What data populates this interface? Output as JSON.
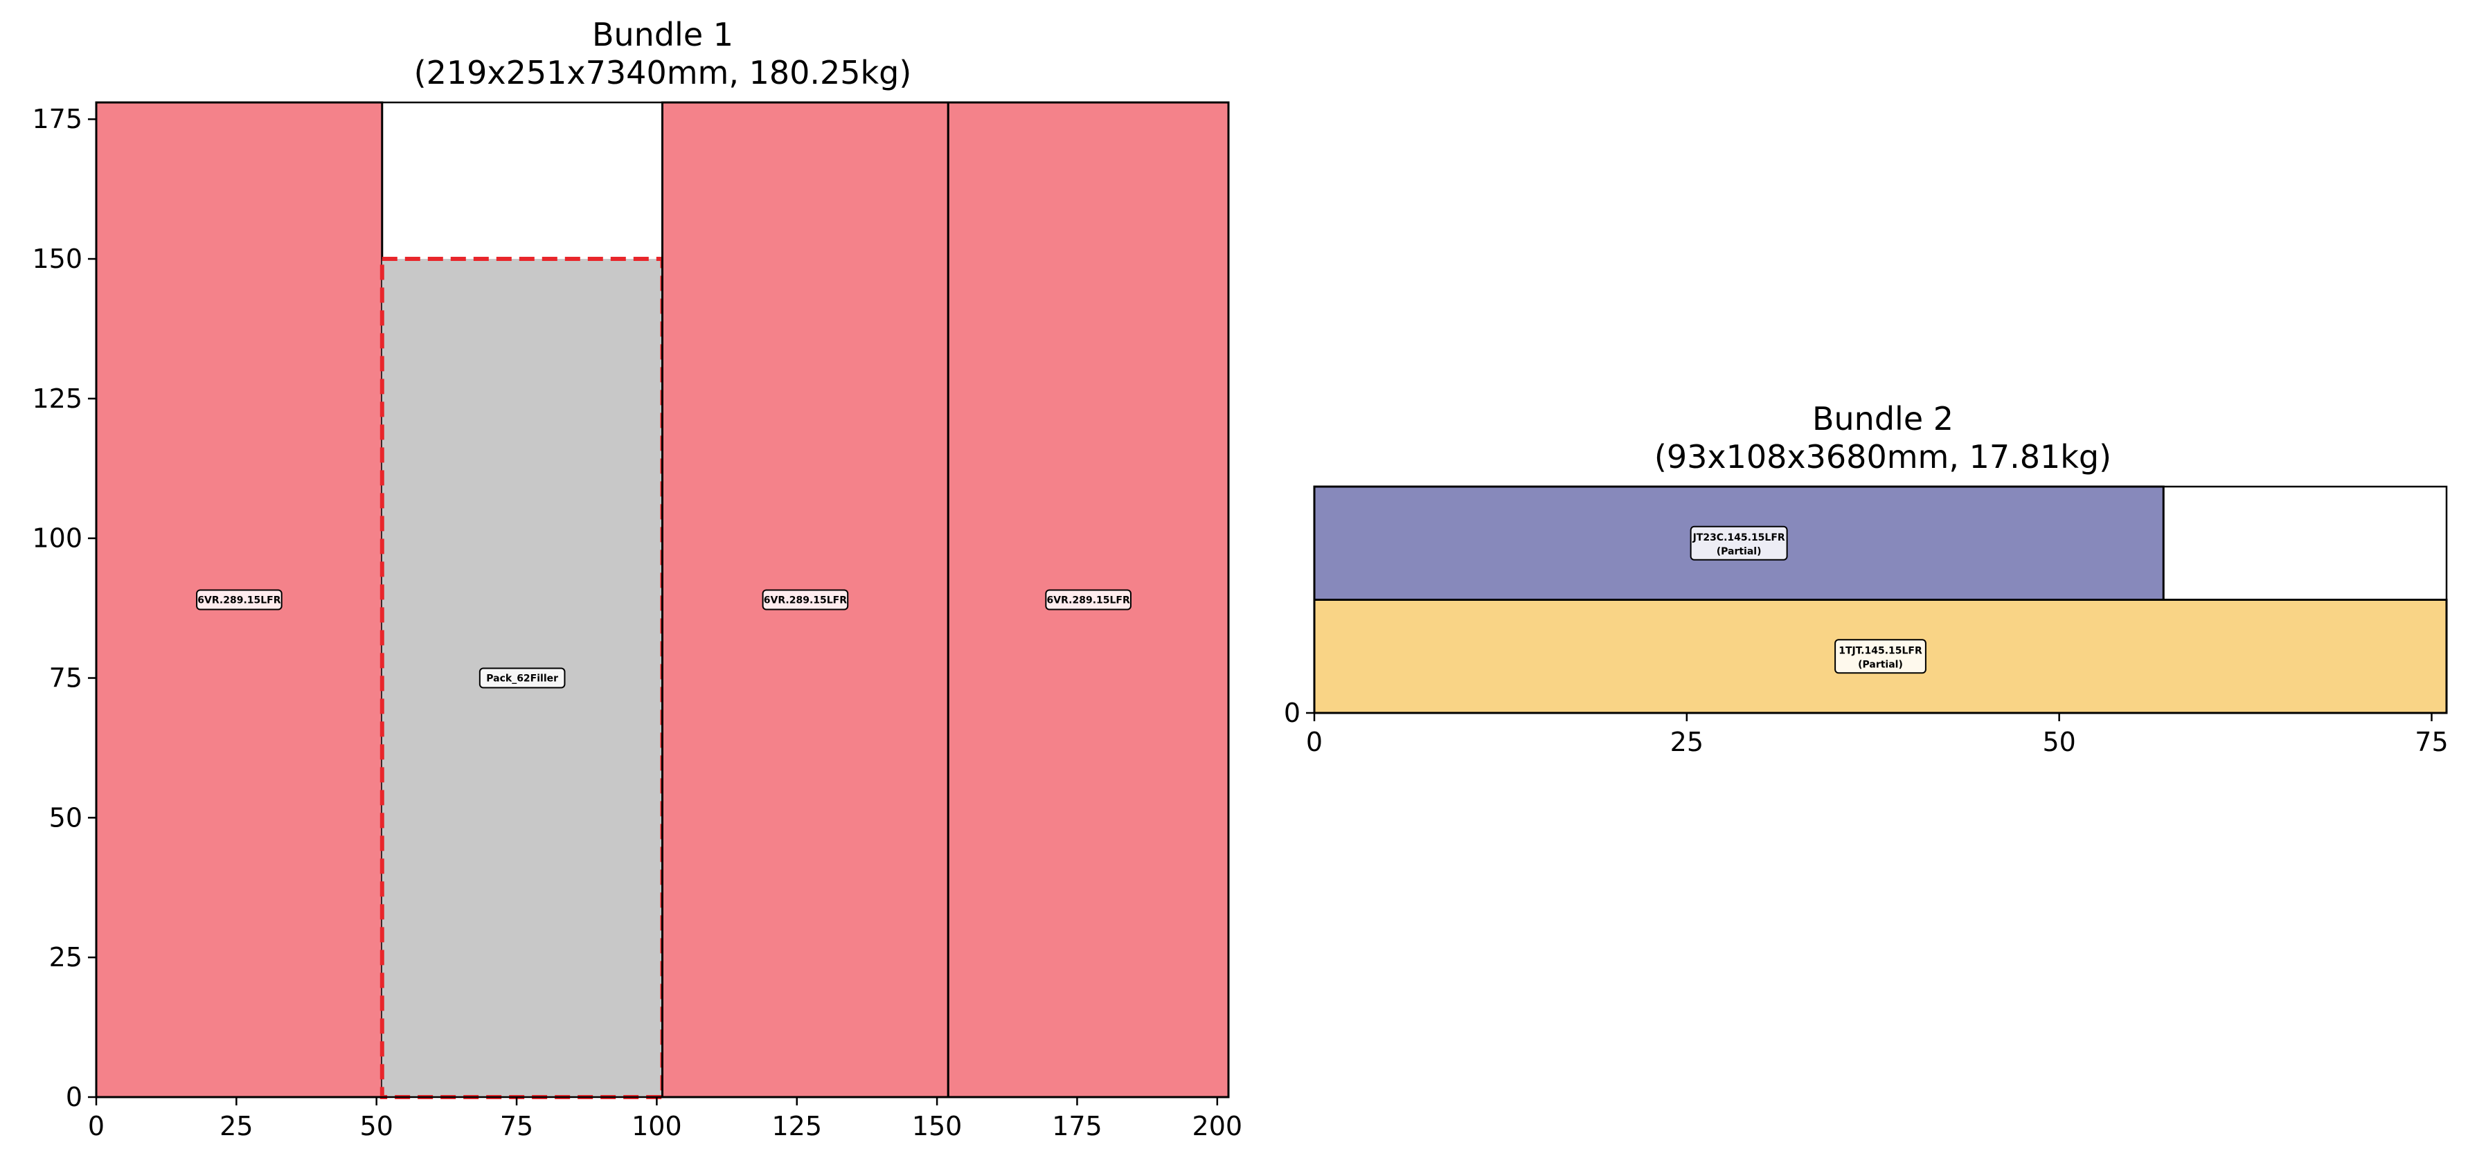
{
  "chart_data": [
    {
      "type": "bar",
      "title_line1": "Bundle 1",
      "title_line2": "(219x251x7340mm, 180.25kg)",
      "xlim": [
        0,
        202
      ],
      "ylim": [
        0,
        178
      ],
      "xticks": [
        0,
        25,
        50,
        75,
        100,
        125,
        150,
        175,
        200
      ],
      "yticks": [
        0,
        25,
        50,
        75,
        100,
        125,
        150,
        175
      ],
      "rects": [
        {
          "x0": 0,
          "x1": 51,
          "y0": 0,
          "y1": 178,
          "color": "#f4828a",
          "label": "6VR.289.15LFR",
          "style": "solid"
        },
        {
          "x0": 51,
          "x1": 101,
          "y0": 0,
          "y1": 150,
          "color": "#c8c8c8",
          "label": "Pack_62Filler",
          "style": "dashed",
          "edge": "#e8262b"
        },
        {
          "x0": 101,
          "x1": 152,
          "y0": 0,
          "y1": 178,
          "color": "#f4828a",
          "label": "6VR.289.15LFR",
          "style": "solid"
        },
        {
          "x0": 152,
          "x1": 202,
          "y0": 0,
          "y1": 178,
          "color": "#f4828a",
          "label": "6VR.289.15LFR",
          "style": "solid"
        }
      ]
    },
    {
      "type": "bar",
      "title_line1": "Bundle 2",
      "title_line2": "(93x108x3680mm, 17.81kg)",
      "xlim": [
        0,
        76
      ],
      "ylim": [
        0,
        15.2
      ],
      "xticks": [
        0,
        25,
        50,
        75
      ],
      "yticks": [
        0
      ],
      "rects": [
        {
          "x0": 0,
          "x1": 76,
          "y0": 0,
          "y1": 7.6,
          "color": "#f9d486",
          "label": "1TJT.145.15LFR",
          "sublabel": "(Partial)",
          "style": "solid"
        },
        {
          "x0": 0,
          "x1": 57,
          "y0": 7.6,
          "y1": 15.2,
          "color": "#8789bb",
          "label": "JT23C.145.15LFR",
          "sublabel": "(Partial)",
          "style": "solid"
        }
      ]
    }
  ]
}
